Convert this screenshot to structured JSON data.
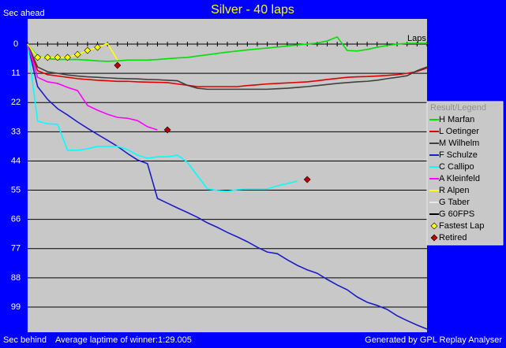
{
  "chart_data": {
    "type": "line",
    "title": "Silver - 40 laps",
    "y_label_top": "Sec ahead",
    "y_label_bottom": "Sec behind",
    "x_label": "Laps",
    "footer_left": "Average laptime of winner:1:29.005",
    "footer_right": "Generated by GPL Replay Analyser",
    "legend_title": "Result/Legend",
    "legend": "right",
    "grid": true,
    "x": [
      0,
      1,
      2,
      3,
      4,
      5,
      6,
      7,
      8,
      9,
      10,
      11,
      12,
      13,
      14,
      15,
      16,
      17,
      18,
      19,
      20,
      21,
      22,
      23,
      24,
      25,
      26,
      27,
      28,
      29,
      30,
      31,
      32,
      33,
      34,
      35,
      36,
      37,
      38,
      39,
      40
    ],
    "xlim": [
      0,
      40
    ],
    "xticks": [
      0,
      1,
      2,
      3,
      4,
      5,
      6,
      7,
      8,
      9,
      10,
      11,
      12,
      13,
      14,
      15,
      16,
      17,
      18,
      19,
      20,
      21,
      22,
      23,
      24,
      25,
      26,
      27,
      28,
      29,
      30,
      31,
      32,
      33,
      34,
      35,
      36,
      37,
      38,
      39,
      40
    ],
    "ylim": [
      108.5,
      -9.5
    ],
    "yticks": [
      0,
      11,
      22,
      33,
      44,
      55,
      66,
      77,
      88,
      99
    ],
    "series": [
      {
        "name": "H Marfan",
        "color": "#00e000",
        "values": [
          0,
          4.5,
          5.5,
          5.8,
          5.8,
          5.8,
          6,
          6.3,
          6.5,
          6.3,
          6,
          6,
          6,
          5.8,
          5.5,
          5.2,
          5,
          4.5,
          4,
          3.5,
          3,
          2.6,
          2.2,
          1.8,
          1.5,
          1.1,
          0.7,
          0.3,
          0,
          -0.4,
          -1.2,
          -2.7,
          2.4,
          2.6,
          2,
          1.2,
          0.5,
          0,
          -0.3,
          -0.3,
          -0.3
        ]
      },
      {
        "name": "L Oetinger",
        "color": "#e00000",
        "values": [
          0,
          10,
          11.5,
          12,
          12.5,
          13,
          13.3,
          13.6,
          13.8,
          14,
          14,
          14.2,
          14.3,
          14.4,
          14.5,
          15,
          15.5,
          16,
          16,
          16,
          16,
          16,
          15.6,
          15.3,
          15,
          14.8,
          14.6,
          14.4,
          14.2,
          13.8,
          13.3,
          12.9,
          12.5,
          12.3,
          12.2,
          12,
          11.8,
          11.5,
          11,
          10.3,
          9
        ]
      },
      {
        "name": "M Wilhelm",
        "color": "#404040",
        "values": [
          0,
          8.6,
          10.4,
          11,
          11.6,
          12,
          12.3,
          12.5,
          12.7,
          12.9,
          13,
          13.1,
          13.3,
          13.4,
          13.6,
          13.8,
          15.5,
          16.6,
          17,
          17,
          17,
          17,
          17,
          17,
          17,
          16.8,
          16.6,
          16.3,
          16,
          15.6,
          15.2,
          14.8,
          14.5,
          14.2,
          14,
          13.6,
          13,
          12.5,
          11.9,
          10,
          8.6
        ]
      },
      {
        "name": "F Schulze",
        "color": "#1c1cc8",
        "values": [
          0,
          16,
          20.8,
          24.3,
          26.7,
          29.3,
          31.7,
          34,
          36.2,
          38.5,
          41.2,
          43.6,
          45,
          58.1,
          59.9,
          61.7,
          63.4,
          65.2,
          67.3,
          69,
          70.9,
          72.6,
          74.4,
          76.5,
          78.3,
          78.9,
          81.2,
          83.3,
          85,
          86.3,
          88.6,
          90.7,
          92.5,
          95.2,
          97.2,
          98.4,
          99.9,
          102.3,
          104.1,
          105.8,
          107.3
        ]
      },
      {
        "name": "C Callipo",
        "color": "#00ffff",
        "values": [
          0,
          29,
          30,
          30.2,
          40,
          40,
          39.4,
          38.5,
          38.5,
          38.5,
          39.7,
          41.8,
          43,
          42.4,
          42.4,
          41.8,
          44.5,
          49.5,
          54.5,
          55.1,
          55.4,
          54.8,
          54.5,
          54.5,
          54.5,
          53.4,
          52.5,
          51.6,
          null,
          null,
          null,
          null,
          null,
          null,
          null,
          null,
          null,
          null,
          null,
          null,
          null
        ]
      },
      {
        "name": "A Kleinfeld",
        "color": "#ff00ff",
        "values": [
          0,
          12.5,
          14.2,
          14.8,
          16.3,
          17.5,
          23.1,
          24.9,
          26.4,
          27.6,
          27.9,
          28.8,
          31.1,
          32.3,
          null,
          null,
          null,
          null,
          null,
          null,
          null,
          null,
          null,
          null,
          null,
          null,
          null,
          null,
          null,
          null,
          null,
          null,
          null,
          null,
          null,
          null,
          null,
          null,
          null,
          null,
          null
        ]
      },
      {
        "name": "R Alpen",
        "color": "#ffff00",
        "values": [
          0,
          5,
          5,
          5,
          5,
          3.9,
          2.4,
          1.2,
          -0.2,
          6,
          null,
          null,
          null,
          null,
          null,
          null,
          null,
          null,
          null,
          null,
          null,
          null,
          null,
          null,
          null,
          null,
          null,
          null,
          null,
          null,
          null,
          null,
          null,
          null,
          null,
          null,
          null,
          null,
          null,
          null,
          null
        ]
      },
      {
        "name": "G Taber",
        "color": "#e8e8e8"
      },
      {
        "name": "G 60FPS",
        "color": "#000000"
      },
      {
        "name": "Fastest Lap",
        "color": "#ffff00",
        "marker": "diamond",
        "values": [
          null,
          5,
          5,
          5,
          5,
          3.9,
          2.4,
          1.2,
          null,
          null,
          null,
          null,
          null,
          null,
          null,
          null,
          null,
          null,
          null,
          null,
          null,
          null,
          null,
          null,
          null,
          null,
          null,
          null,
          null,
          null,
          null,
          null,
          null,
          null,
          null,
          null,
          null,
          null,
          null,
          null,
          null
        ]
      },
      {
        "name": "Retired",
        "color": "#c00000",
        "marker": "diamond",
        "values": [
          null,
          null,
          null,
          null,
          null,
          null,
          null,
          null,
          null,
          8,
          null,
          null,
          null,
          null,
          32.3,
          null,
          null,
          null,
          null,
          null,
          null,
          null,
          null,
          null,
          null,
          null,
          null,
          null,
          51,
          null,
          null,
          null,
          null,
          null,
          null,
          null,
          null,
          null,
          null,
          null,
          null
        ]
      }
    ]
  }
}
